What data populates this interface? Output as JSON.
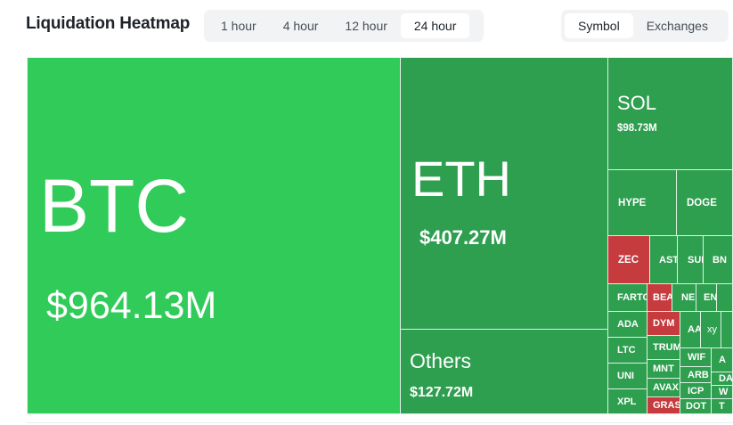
{
  "header": {
    "title": "Liquidation Heatmap"
  },
  "time_tabs": [
    {
      "label": "1 hour",
      "active": false
    },
    {
      "label": "4 hour",
      "active": false
    },
    {
      "label": "12 hour",
      "active": false
    },
    {
      "label": "24 hour",
      "active": true
    }
  ],
  "view_tabs": [
    {
      "label": "Symbol",
      "active": true
    },
    {
      "label": "Exchanges",
      "active": false
    }
  ],
  "colors": {
    "bright_green": "#31cb5a",
    "green": "#2e9e4f",
    "red": "#c53b3e"
  },
  "tiles": {
    "btc": {
      "symbol": "BTC",
      "value": "$964.13M"
    },
    "eth": {
      "symbol": "ETH",
      "value": "$407.27M"
    },
    "others": {
      "symbol": "Others",
      "value": "$127.72M"
    },
    "sol": {
      "symbol": "SOL",
      "value": "$98.73M"
    },
    "hype": "HYPE",
    "doge": "DOGE",
    "zec": "ZEC",
    "aster": "AST",
    "sui": "SUI",
    "bnb": "BN",
    "farto": "FARTO",
    "bea": "BEA",
    "ne": "NE",
    "en": "EN",
    "ada": "ADA",
    "dym": "DYM",
    "aa": "AA",
    "xy": "xy",
    "ltc": "LTC",
    "trum": "TRUM",
    "wif": "WIF",
    "uni": "UNI",
    "mnt": "MNT",
    "arb": "ARB",
    "da": "DA",
    "avax": "AVAX",
    "icp": "ICP",
    "w": "W",
    "xpl": "XPL",
    "gras": "GRAS",
    "dot": "DOT",
    "t": "T"
  }
}
